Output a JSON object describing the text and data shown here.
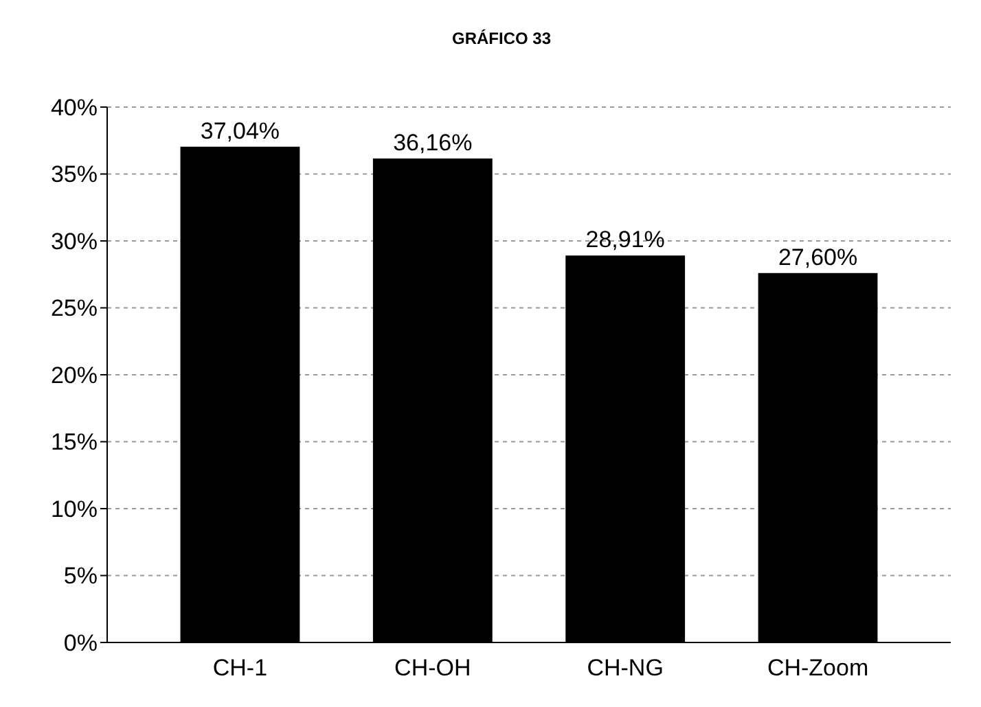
{
  "chart_data": {
    "type": "bar",
    "title": "GRÁFICO 33",
    "categories": [
      "CH-1",
      "CH-OH",
      "CH-NG",
      "CH-Zoom"
    ],
    "values": [
      37.04,
      36.16,
      28.91,
      27.6
    ],
    "value_labels": [
      "37,04%",
      "36,16%",
      "28,91%",
      "27,60%"
    ],
    "color": "#000000",
    "ylim": [
      0,
      40
    ],
    "yticks": [
      {
        "value": 0,
        "label": "0%"
      },
      {
        "value": 5,
        "label": "5%"
      },
      {
        "value": 10,
        "label": "10%"
      },
      {
        "value": 15,
        "label": "15%"
      },
      {
        "value": 20,
        "label": "20%"
      },
      {
        "value": 25,
        "label": "25%"
      },
      {
        "value": 30,
        "label": "30%"
      },
      {
        "value": 35,
        "label": "35%"
      },
      {
        "value": 40,
        "label": "40%"
      }
    ],
    "grid": "y"
  }
}
